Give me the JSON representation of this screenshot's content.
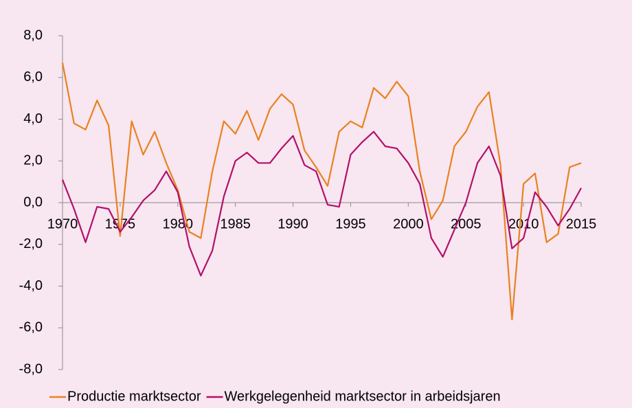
{
  "chart_data": {
    "type": "line",
    "x": [
      1970,
      1971,
      1972,
      1973,
      1974,
      1975,
      1976,
      1977,
      1978,
      1979,
      1980,
      1981,
      1982,
      1983,
      1984,
      1985,
      1986,
      1987,
      1988,
      1989,
      1990,
      1991,
      1992,
      1993,
      1994,
      1995,
      1996,
      1997,
      1998,
      1999,
      2000,
      2001,
      2002,
      2003,
      2004,
      2005,
      2006,
      2007,
      2008,
      2009,
      2010,
      2011,
      2012,
      2013,
      2014,
      2015
    ],
    "series": [
      {
        "name": "Productie marktsector",
        "color": "#e8821e",
        "values": [
          6.7,
          3.8,
          3.5,
          4.9,
          3.7,
          -1.6,
          3.9,
          2.3,
          3.4,
          1.9,
          0.6,
          -1.4,
          -1.7,
          1.5,
          3.9,
          3.3,
          4.4,
          3.0,
          4.5,
          5.2,
          4.7,
          2.5,
          1.7,
          0.8,
          3.4,
          3.9,
          3.6,
          5.5,
          5.0,
          5.8,
          5.1,
          1.5,
          -0.8,
          0.1,
          2.7,
          3.4,
          4.6,
          5.3,
          1.8,
          -5.6,
          0.9,
          1.4,
          -1.9,
          -1.5,
          1.7,
          1.9
        ]
      },
      {
        "name": "Werkgelegenheid marktsector in arbeidsjaren",
        "color": "#b0106a",
        "values": [
          1.1,
          -0.3,
          -1.9,
          -0.2,
          -0.3,
          -1.4,
          -0.7,
          0.1,
          0.6,
          1.5,
          0.5,
          -2.1,
          -3.5,
          -2.3,
          0.3,
          2.0,
          2.4,
          1.9,
          1.9,
          2.6,
          3.2,
          1.8,
          1.5,
          -0.1,
          -0.2,
          2.3,
          2.9,
          3.4,
          2.7,
          2.6,
          1.9,
          0.9,
          -1.7,
          -2.6,
          -1.3,
          0.0,
          1.9,
          2.7,
          1.3,
          -2.2,
          -1.7,
          0.5,
          -0.2,
          -1.1,
          -0.3,
          0.7
        ]
      }
    ],
    "xlim": [
      1970,
      2015
    ],
    "xticks": [
      1970,
      1975,
      1980,
      1985,
      1990,
      1995,
      2000,
      2005,
      2010,
      2015
    ],
    "ylim": [
      -8,
      8
    ],
    "yticks": [
      {
        "value": -8,
        "label": "-8,0"
      },
      {
        "value": -6,
        "label": "-6,0"
      },
      {
        "value": -4,
        "label": "-4,0"
      },
      {
        "value": -2,
        "label": "-2,0"
      },
      {
        "value": 0,
        "label": "0,0"
      },
      {
        "value": 2,
        "label": "2,0"
      },
      {
        "value": 4,
        "label": "4,0"
      },
      {
        "value": 6,
        "label": "6,0"
      },
      {
        "value": 8,
        "label": "8,0"
      }
    ],
    "legend": "bottom"
  }
}
